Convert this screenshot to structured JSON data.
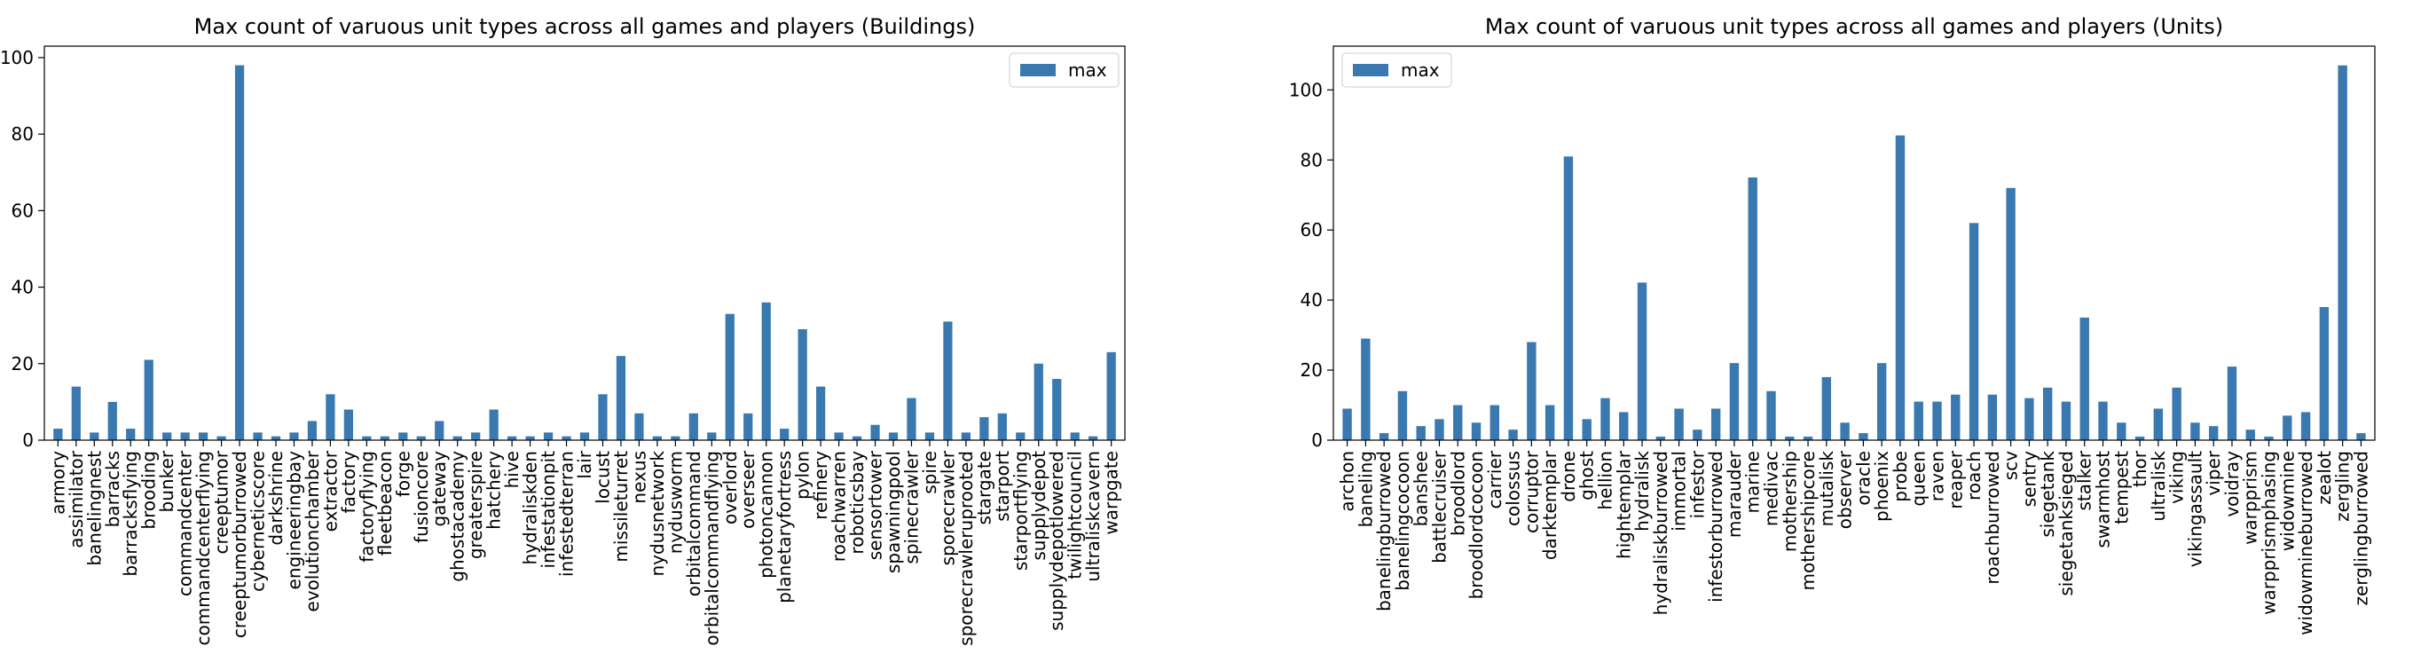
{
  "chart_data": [
    {
      "type": "bar",
      "title": "Max count of varuous unit types across all games and players (Buildings)",
      "xlabel": "",
      "ylabel": "",
      "ylim": [
        0,
        103
      ],
      "yticks": [
        0,
        20,
        40,
        60,
        80,
        100
      ],
      "grid": false,
      "legend": "top-right",
      "color": "#3a78b0",
      "series": [
        {
          "name": "max",
          "values": [
            3,
            14,
            2,
            10,
            3,
            21,
            2,
            2,
            2,
            1,
            98,
            2,
            1,
            2,
            5,
            12,
            8,
            1,
            1,
            2,
            1,
            5,
            1,
            2,
            8,
            1,
            1,
            2,
            1,
            2,
            12,
            22,
            7,
            1,
            1,
            7,
            2,
            33,
            7,
            36,
            3,
            29,
            14,
            2,
            1,
            4,
            2,
            11,
            2,
            31,
            2,
            6,
            7,
            2,
            20,
            16,
            2,
            1,
            23
          ]
        }
      ],
      "categories": [
        "armory",
        "assimilator",
        "banelingnest",
        "barracks",
        "barracksflying",
        "brooding",
        "bunker",
        "commandcenter",
        "commandcenterflying",
        "creeptumor",
        "creeptumorburrowed",
        "cyberneticscore",
        "darkshrine",
        "engineeringbay",
        "evolutionchamber",
        "extractor",
        "factory",
        "factoryflying",
        "fleetbeacon",
        "forge",
        "fusioncore",
        "gateway",
        "ghostacademy",
        "greaterspire",
        "hatchery",
        "hive",
        "hydraliskden",
        "infestationpit",
        "infestedterran",
        "lair",
        "locust",
        "missileturret",
        "nexus",
        "nydusnetwork",
        "nydusworm",
        "orbitalcommand",
        "orbitalcommandflying",
        "overlord",
        "overseer",
        "photoncannon",
        "planetaryfortress",
        "pylon",
        "refinery",
        "roachwarren",
        "roboticsbay",
        "sensortower",
        "spawningpool",
        "spinecrawler",
        "spire",
        "sporecrawler",
        "sporecrawleruprooted",
        "stargate",
        "starport",
        "starportflying",
        "supplydepot",
        "supplydepotlowered",
        "twilightcouncil",
        "ultraliskcavern",
        "warpgate"
      ]
    },
    {
      "type": "bar",
      "title": "Max count of varuous unit types across all games and players (Units)",
      "xlabel": "",
      "ylabel": "",
      "ylim": [
        0,
        112.5
      ],
      "yticks": [
        0,
        20,
        40,
        60,
        80,
        100
      ],
      "grid": false,
      "legend": "top-left",
      "color": "#3a78b0",
      "series": [
        {
          "name": "max",
          "values": [
            9,
            29,
            2,
            14,
            4,
            6,
            10,
            5,
            10,
            3,
            28,
            10,
            81,
            6,
            12,
            8,
            45,
            1,
            9,
            3,
            9,
            22,
            75,
            14,
            1,
            1,
            18,
            5,
            2,
            22,
            87,
            11,
            11,
            13,
            62,
            13,
            72,
            12,
            15,
            11,
            35,
            11,
            5,
            1,
            9,
            15,
            5,
            4,
            21,
            3,
            1,
            7,
            8,
            38,
            107,
            2
          ]
        }
      ],
      "categories": [
        "archon",
        "baneling",
        "banelingburrowed",
        "banelingcocoon",
        "banshee",
        "battlecruiser",
        "broodlord",
        "broodlordcocoon",
        "carrier",
        "colossus",
        "corruptor",
        "darktemplar",
        "drone",
        "ghost",
        "hellion",
        "hightemplar",
        "hydralisk",
        "hydraliskburrowed",
        "immortal",
        "infestor",
        "infestorburrowed",
        "marauder",
        "marine",
        "medivac",
        "mothership",
        "mothershipcore",
        "mutalisk",
        "observer",
        "oracle",
        "phoenix",
        "probe",
        "queen",
        "raven",
        "reaper",
        "roach",
        "roachburrowed",
        "scv",
        "sentry",
        "siegetank",
        "siegetanksieged",
        "stalker",
        "swarmhost",
        "tempest",
        "thor",
        "ultralisk",
        "viking",
        "vikingassault",
        "viper",
        "voidray",
        "warpprism",
        "warpprismphasing",
        "widowmine",
        "widowmineburrowed",
        "zealot",
        "zergling",
        "zerglingburrowed"
      ]
    }
  ]
}
